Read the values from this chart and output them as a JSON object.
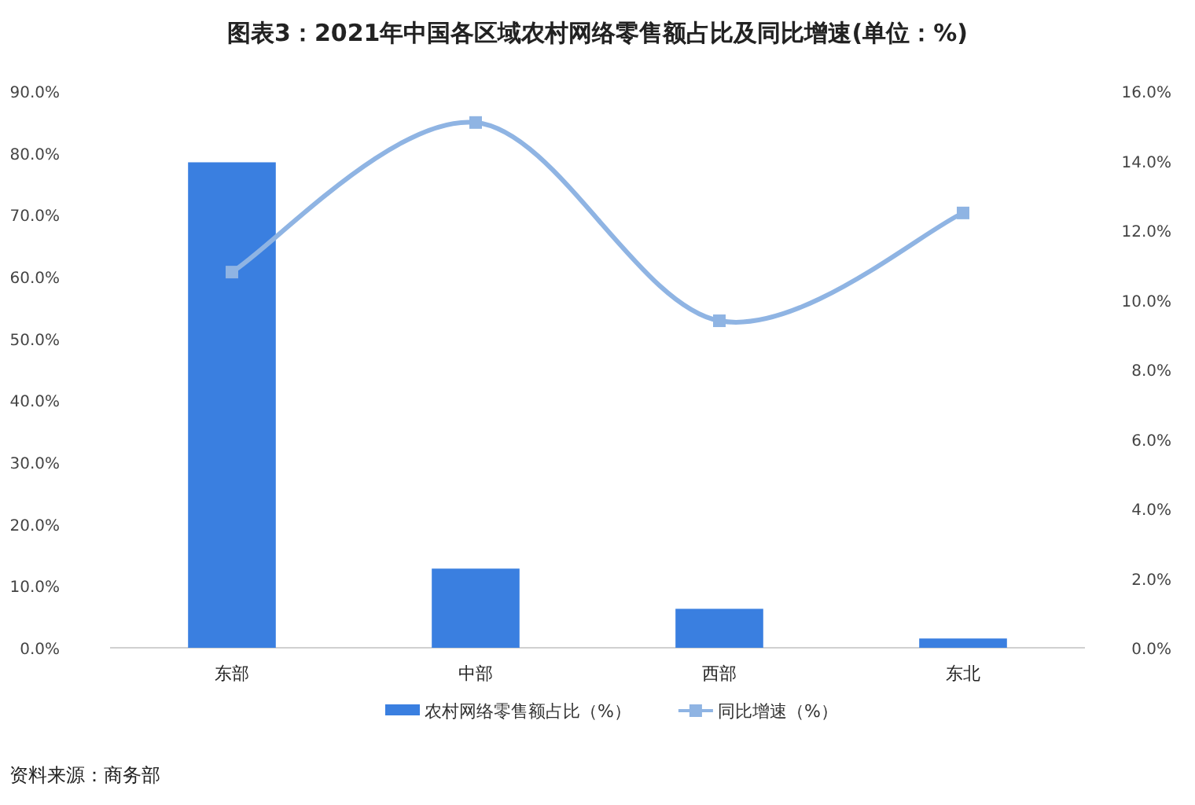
{
  "chart_data": {
    "type": "bar",
    "title": "图表3：2021年中国各区域农村网络零售额占比及同比增速(单位：%)",
    "categories": [
      "东部",
      "中部",
      "西部",
      "东北"
    ],
    "series": [
      {
        "name": "农村网络零售额占比（%）",
        "color": "#3a7fe0",
        "values": [
          78.5,
          12.8,
          6.3,
          1.5
        ]
      },
      {
        "name": "同比增速（%）",
        "type": "line",
        "axis": "y2",
        "color": "#8fb4e3",
        "values": [
          10.8,
          15.1,
          9.4,
          12.5
        ]
      }
    ],
    "ylim": [
      0,
      90
    ],
    "yticks": [
      {
        "value": 0,
        "label": "0.0%"
      },
      {
        "value": 10,
        "label": "10.0%"
      },
      {
        "value": 20,
        "label": "20.0%"
      },
      {
        "value": 30,
        "label": "30.0%"
      },
      {
        "value": 40,
        "label": "40.0%"
      },
      {
        "value": 50,
        "label": "50.0%"
      },
      {
        "value": 60,
        "label": "60.0%"
      },
      {
        "value": 70,
        "label": "70.0%"
      },
      {
        "value": 80,
        "label": "80.0%"
      },
      {
        "value": 90,
        "label": "90.0%"
      }
    ],
    "y2lim": [
      0,
      16
    ],
    "y2ticks": [
      {
        "value": 0,
        "label": "0.0%"
      },
      {
        "value": 2,
        "label": "2.0%"
      },
      {
        "value": 4,
        "label": "4.0%"
      },
      {
        "value": 6,
        "label": "6.0%"
      },
      {
        "value": 8,
        "label": "8.0%"
      },
      {
        "value": 10,
        "label": "10.0%"
      },
      {
        "value": 12,
        "label": "12.0%"
      },
      {
        "value": 14,
        "label": "14.0%"
      },
      {
        "value": 16,
        "label": "16.0%"
      }
    ],
    "marker": "square",
    "grid": false,
    "legend": "bottom",
    "annotations": [
      "资料来源：商务部"
    ]
  }
}
